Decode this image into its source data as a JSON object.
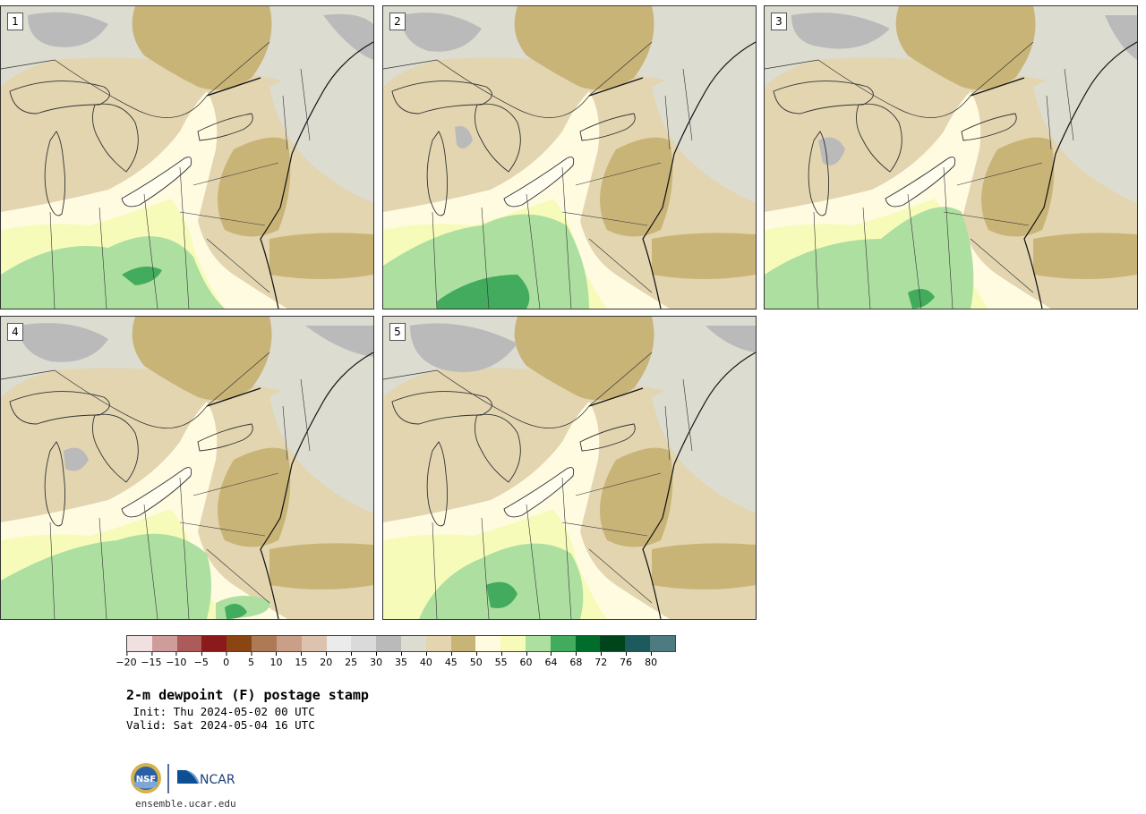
{
  "title": "2-m dewpoint (F) postage stamp",
  "init_line": " Init: Thu 2024-05-02 00 UTC",
  "valid_line": "Valid: Sat 2024-05-04 16 UTC",
  "logos": {
    "nsf": "NSF",
    "ncar": "NCAR"
  },
  "footer_url": "ensemble.ucar.edu",
  "panels": [
    {
      "number": "1"
    },
    {
      "number": "2"
    },
    {
      "number": "3"
    },
    {
      "number": "4"
    },
    {
      "number": "5"
    }
  ],
  "colorbar": {
    "colors": [
      "#f0e0e0",
      "#cf9c9c",
      "#ad5a5a",
      "#8b1a1a",
      "#8b4513",
      "#ad7a55",
      "#c9a087",
      "#ddc2b0",
      "#ebebeb",
      "#dadada",
      "#bababa",
      "#dcdcd0",
      "#e2d5b0",
      "#c9b478",
      "#fffbe1",
      "#f7fbb9",
      "#addfa0",
      "#42ab5d",
      "#006d2c",
      "#00441b",
      "#1c5a5e",
      "#4d7b80"
    ],
    "ticks": [
      "−20",
      "−15",
      "−10",
      "−5",
      "0",
      "5",
      "10",
      "15",
      "20",
      "25",
      "30",
      "35",
      "40",
      "45",
      "50",
      "55",
      "60",
      "64",
      "68",
      "72",
      "76",
      "80"
    ]
  },
  "map_colors": {
    "lt35": "#dcdcd0",
    "c30": "#bababa",
    "c40": "#e2d5b0",
    "c45": "#c9b478",
    "c50": "#fffbe1",
    "c55": "#f7fbb9",
    "c60": "#addfa0",
    "c64": "#42ab5d",
    "lake": "#e2d5b0",
    "border": "#333333"
  }
}
